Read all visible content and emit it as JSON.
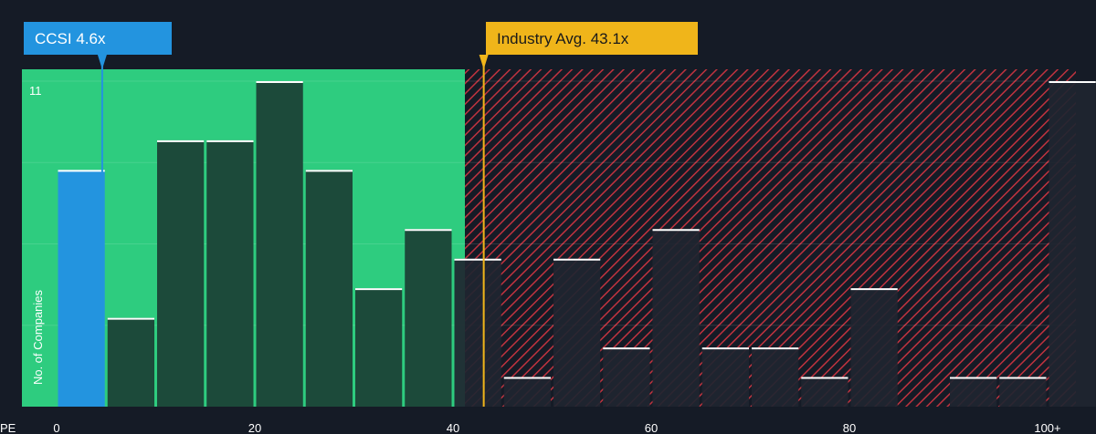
{
  "chart_data": {
    "type": "bar",
    "title": "",
    "xlabel": "PE",
    "ylabel": "No. of Companies",
    "x_ticks": [
      "0",
      "20",
      "40",
      "60",
      "80",
      "100+"
    ],
    "y_ticks": [
      "11"
    ],
    "ylim": [
      0,
      11
    ],
    "xlim": [
      0,
      102.5
    ],
    "bin_width": 5,
    "bins": [
      {
        "start": 0,
        "value": 8
      },
      {
        "start": 5,
        "value": 3
      },
      {
        "start": 10,
        "value": 9
      },
      {
        "start": 15,
        "value": 9
      },
      {
        "start": 20,
        "value": 11
      },
      {
        "start": 25,
        "value": 8
      },
      {
        "start": 30,
        "value": 4
      },
      {
        "start": 35,
        "value": 6
      },
      {
        "start": 40,
        "value": 5
      },
      {
        "start": 45,
        "value": 1
      },
      {
        "start": 50,
        "value": 5
      },
      {
        "start": 55,
        "value": 2
      },
      {
        "start": 60,
        "value": 6
      },
      {
        "start": 65,
        "value": 2
      },
      {
        "start": 70,
        "value": 2
      },
      {
        "start": 75,
        "value": 1
      },
      {
        "start": 80,
        "value": 4
      },
      {
        "start": 85,
        "value": 0
      },
      {
        "start": 90,
        "value": 1
      },
      {
        "start": 95,
        "value": 1
      },
      {
        "start": 100,
        "value": 11
      }
    ],
    "company": {
      "label": "CCSI 4.6x",
      "value": 4.6,
      "color": "#2394df"
    },
    "industry": {
      "label": "Industry Avg. 43.1x",
      "value": 43.1,
      "color": "#f0b51a"
    },
    "fair_zone_end": 41.2,
    "colors": {
      "background": "#151b26",
      "green_zone": "#2ecc7f",
      "green_bar": "#1c4a3a",
      "company_bar": "#2394df",
      "red_hatch": "#c0333f",
      "dark_bar": "#1f2530",
      "bar_cap": "#ffffff"
    }
  }
}
